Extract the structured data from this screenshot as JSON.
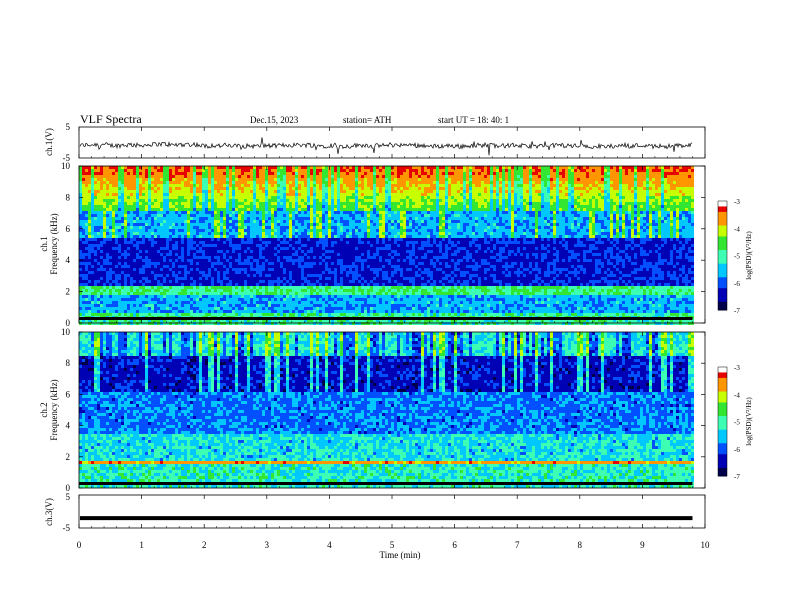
{
  "header": {
    "title": "VLF  Spectra",
    "date": "Dec.15, 2023",
    "station": "station= ATH",
    "start": "start  UT  =    18: 40: 1"
  },
  "chart_data": [
    {
      "type": "line",
      "name_label": "ch.1(V)",
      "ylim": [
        -5,
        5
      ],
      "yticks": [
        "5",
        "-5"
      ],
      "description_values": {
        "baseline": -1,
        "noise_amplitude": 1.5
      }
    },
    {
      "type": "heatmap",
      "channel_label": "ch.1",
      "ylabel": "Frequency  (kHz)",
      "ylim": [
        0,
        10
      ],
      "yticks": [
        "0",
        "2",
        "4",
        "6",
        "8",
        "10"
      ],
      "colorbar": {
        "label": "log(PSD)(V²/Hz)",
        "range": [
          -7,
          -3
        ],
        "ticks": [
          "-3",
          "-4",
          "-5",
          "-6",
          "-7"
        ]
      }
    },
    {
      "type": "heatmap",
      "channel_label": "ch.2",
      "ylabel": "Frequency  (kHz)",
      "ylim": [
        0,
        10
      ],
      "yticks": [
        "0",
        "2",
        "4",
        "6",
        "8",
        "10"
      ],
      "colorbar": {
        "label": "log(PSD)(V²/Hz)",
        "range": [
          -7,
          -3
        ],
        "ticks": [
          "-3",
          "-4",
          "-5",
          "-6",
          "-7"
        ]
      }
    },
    {
      "type": "line",
      "name_label": "ch.3(V)",
      "ylim": [
        -5,
        5
      ],
      "yticks": [
        "5",
        "-5"
      ],
      "description_values": {
        "baseline": -2
      }
    }
  ],
  "xaxis": {
    "label": "Time  (min)",
    "range": [
      0,
      10
    ],
    "ticks": [
      "0",
      "1",
      "2",
      "3",
      "4",
      "5",
      "6",
      "7",
      "8",
      "9",
      "10"
    ],
    "data_end": 9.8
  },
  "colors": {
    "colormap": [
      "#00004a",
      "#0000b4",
      "#0050ff",
      "#00c8ff",
      "#3cffb4",
      "#32e632",
      "#c8ff00",
      "#ff9600",
      "#e60000",
      "#ffffff"
    ]
  }
}
